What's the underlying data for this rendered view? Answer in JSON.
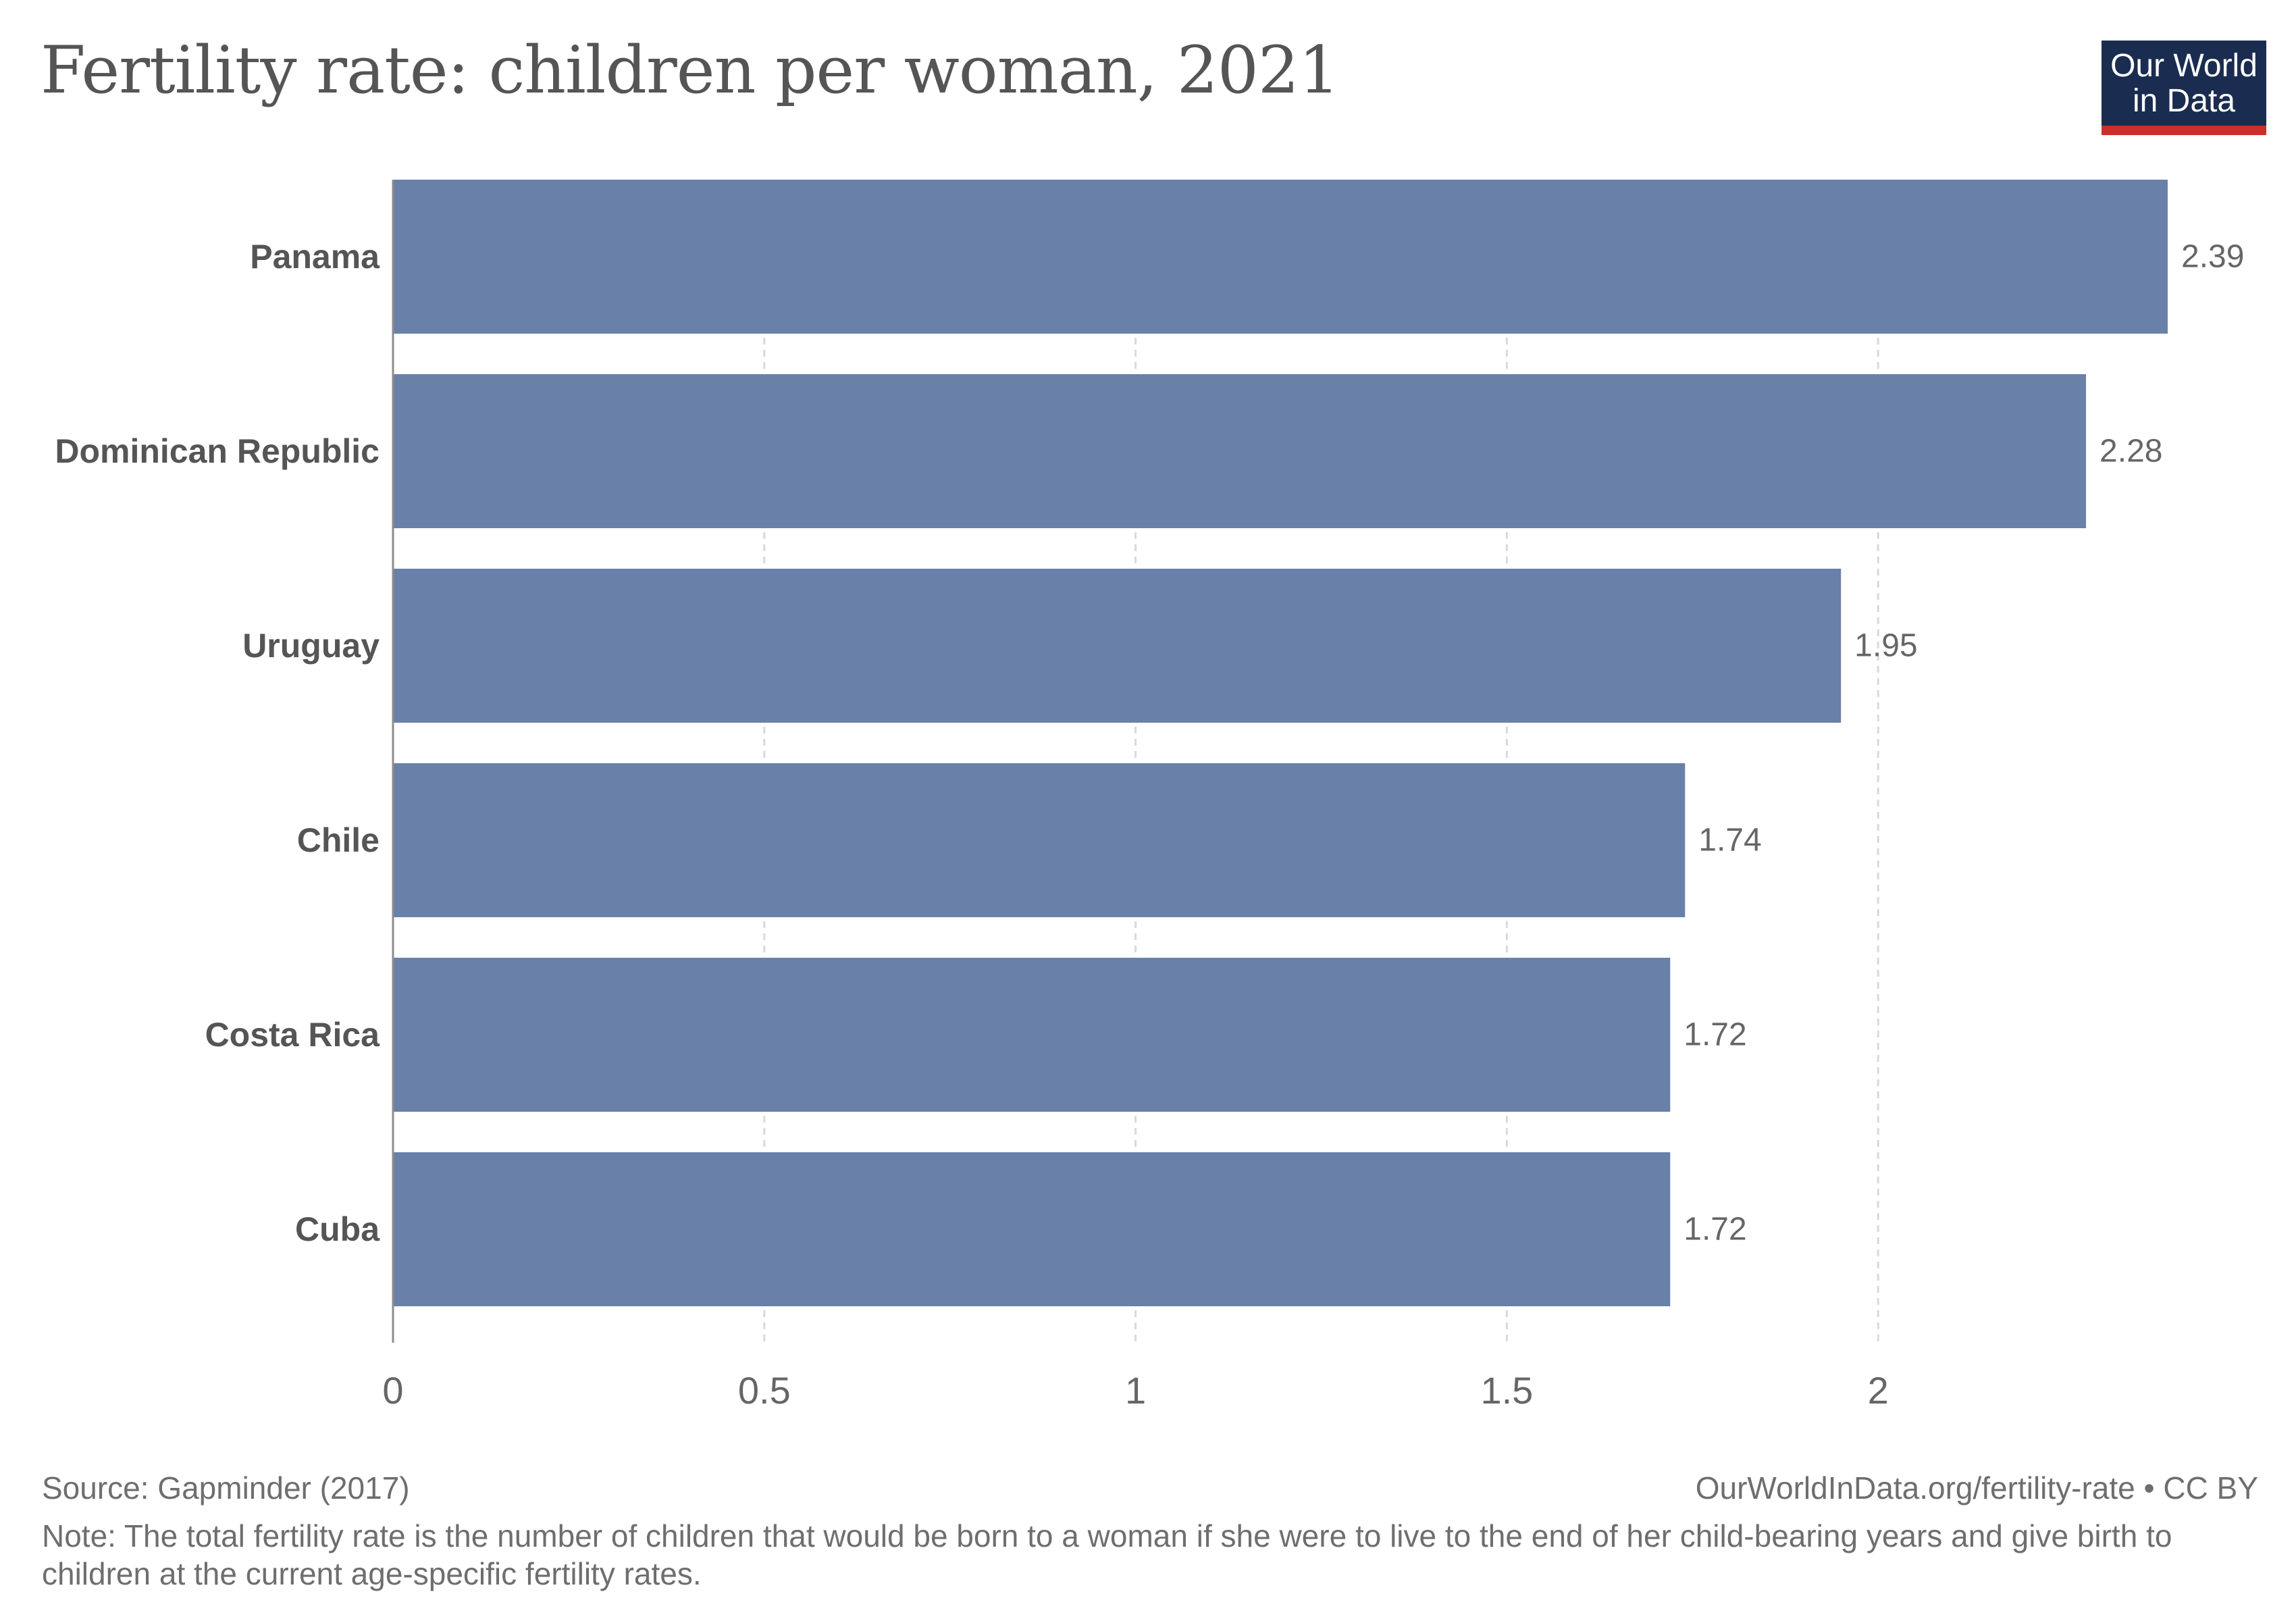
{
  "title": "Fertility rate: children per woman, 2021",
  "logo": {
    "line1": "Our World",
    "line2": "in Data"
  },
  "colors": {
    "bar": "#6980a9",
    "grid": "#d9d9d9",
    "axis": "#8c8c8c",
    "label": "#555555",
    "value": "#666666"
  },
  "chart_data": {
    "type": "bar",
    "orientation": "horizontal",
    "categories": [
      "Panama",
      "Dominican Republic",
      "Uruguay",
      "Chile",
      "Costa Rica",
      "Cuba"
    ],
    "values": [
      2.39,
      2.28,
      1.95,
      1.74,
      1.72,
      1.72
    ],
    "value_labels": [
      "2.39",
      "2.28",
      "1.95",
      "1.74",
      "1.72",
      "1.72"
    ],
    "xticks": [
      0,
      0.5,
      1,
      1.5,
      2
    ],
    "xtick_labels": [
      "0",
      "0.5",
      "1",
      "1.5",
      "2"
    ],
    "xlim": [
      0,
      2.39
    ],
    "grid": true
  },
  "footer": {
    "source": "Source: Gapminder (2017)",
    "url": "OurWorldInData.org/fertility-rate • CC BY",
    "note": "Note: The total fertility rate is the number of children that would be born to a woman if she were to live to the end of her child-bearing years and give birth to children at the current age-specific fertility rates."
  }
}
